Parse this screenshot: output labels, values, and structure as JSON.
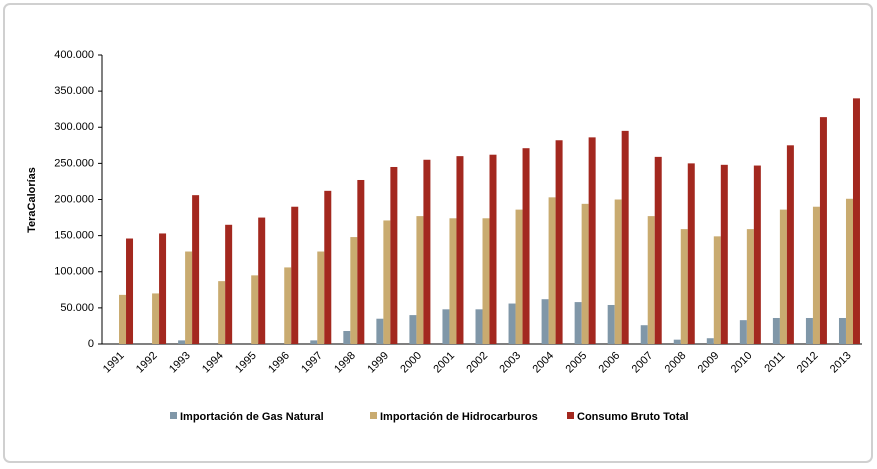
{
  "chart_data": {
    "type": "bar",
    "y_label": "TeraCalorías",
    "categories": [
      "1991",
      "1992",
      "1993",
      "1994",
      "1995",
      "1996",
      "1997",
      "1998",
      "1999",
      "2000",
      "2001",
      "2002",
      "2003",
      "2004",
      "2005",
      "2006",
      "2007",
      "2008",
      "2009",
      "2010",
      "2011",
      "2012",
      "2013"
    ],
    "series": [
      {
        "name": "Importación de Gas Natural",
        "color": "#8097a8",
        "values": [
          0,
          0,
          5000,
          0,
          0,
          0,
          5000,
          18000,
          35000,
          40000,
          48000,
          48000,
          56000,
          62000,
          58000,
          54000,
          26000,
          6000,
          8000,
          33000,
          36000,
          36000,
          36000
        ]
      },
      {
        "name": "Importación de Hidrocarburos",
        "color": "#c9ab70",
        "values": [
          68000,
          70000,
          128000,
          87000,
          95000,
          106000,
          128000,
          148000,
          171000,
          177000,
          174000,
          174000,
          186000,
          203000,
          194000,
          200000,
          177000,
          159000,
          149000,
          159000,
          186000,
          190000,
          201000
        ]
      },
      {
        "name": "Consumo Bruto Total",
        "color": "#a3281f",
        "values": [
          146000,
          153000,
          206000,
          165000,
          175000,
          190000,
          212000,
          227000,
          245000,
          255000,
          260000,
          262000,
          271000,
          282000,
          286000,
          295000,
          259000,
          250000,
          248000,
          247000,
          275000,
          314000,
          340000
        ]
      }
    ],
    "ylim": [
      0,
      400000
    ],
    "yticks": [
      0,
      {
        "value": 50000,
        "label": "50.000"
      },
      {
        "value": 100000,
        "label": "100.000"
      },
      {
        "value": 150000,
        "label": "150.000"
      },
      {
        "value": 200000,
        "label": "200.000"
      },
      {
        "value": 250000,
        "label": "250.000"
      },
      {
        "value": 300000,
        "label": "300.000"
      },
      {
        "value": 350000,
        "label": "350.000"
      },
      {
        "value": 400000,
        "label": "400.000"
      }
    ],
    "legend": "bottom"
  }
}
